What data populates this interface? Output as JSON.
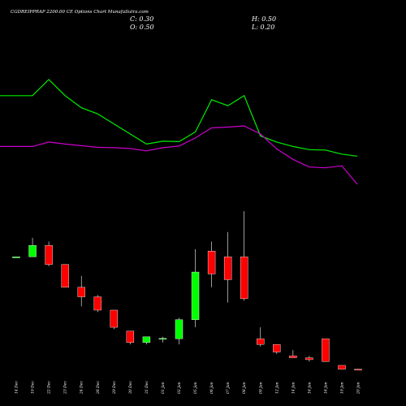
{
  "title": "CGDREIPPRAP 2200.00  CE Options  Chart MunafaSutra.com",
  "ohlc": {
    "close": "C: 0.30",
    "high": "H: 0.50",
    "open": "O: 0.50",
    "low": "L: 0.20"
  },
  "colors": {
    "background": "#000000",
    "up": "#00ff00",
    "down": "#ff0000",
    "ma_fast": "#00ee00",
    "ma_slow": "#cc00cc",
    "text": "#ffffff"
  },
  "chart_data": {
    "type": "candlestick",
    "categories": [
      "14 Dec",
      "19 Dec",
      "22 Dec",
      "23 Dec",
      "24 Dec",
      "26 Dec",
      "29 Dec",
      "30 Dec",
      "31 Dec",
      "01 Jan",
      "02 Jan",
      "05 Jan",
      "06 Jan",
      "07 Jan",
      "08 Jan",
      "09 Jan",
      "12 Jan",
      "14 Jan",
      "16 Jan",
      "16 Jan",
      "19 Jan",
      "20 Jan"
    ],
    "candles": [
      {
        "o": 30.0,
        "h": 30.0,
        "l": 30.0,
        "c": 30.0
      },
      {
        "o": 30.0,
        "h": 35.0,
        "l": 30.0,
        "c": 33.0
      },
      {
        "o": 33.0,
        "h": 34.0,
        "l": 27.5,
        "c": 28.0
      },
      {
        "o": 28.0,
        "h": 28.0,
        "l": 22.0,
        "c": 22.0
      },
      {
        "o": 22.0,
        "h": 25.0,
        "l": 17.0,
        "c": 19.5
      },
      {
        "o": 19.5,
        "h": 20.0,
        "l": 15.5,
        "c": 16.0
      },
      {
        "o": 16.0,
        "h": 16.0,
        "l": 11.0,
        "c": 11.5
      },
      {
        "o": 10.5,
        "h": 10.5,
        "l": 7.0,
        "c": 7.5
      },
      {
        "o": 7.5,
        "h": 9.0,
        "l": 7.0,
        "c": 9.0
      },
      {
        "o": 8.5,
        "h": 9.0,
        "l": 7.5,
        "c": 8.6
      },
      {
        "o": 8.5,
        "h": 14.0,
        "l": 7.0,
        "c": 13.5
      },
      {
        "o": 13.5,
        "h": 32.0,
        "l": 11.5,
        "c": 26.0
      },
      {
        "o": 31.5,
        "h": 34.0,
        "l": 22.0,
        "c": 25.5
      },
      {
        "o": 30.0,
        "h": 36.5,
        "l": 18.0,
        "c": 24.0
      },
      {
        "o": 30.0,
        "h": 42.0,
        "l": 18.5,
        "c": 19.0
      },
      {
        "o": 8.5,
        "h": 11.5,
        "l": 6.5,
        "c": 7.0
      },
      {
        "o": 7.0,
        "h": 7.0,
        "l": 4.5,
        "c": 5.0
      },
      {
        "o": 4.0,
        "h": 5.5,
        "l": 3.5,
        "c": 3.5
      },
      {
        "o": 3.5,
        "h": 4.0,
        "l": 2.5,
        "c": 3.0
      },
      {
        "o": 8.5,
        "h": 8.5,
        "l": 2.5,
        "c": 2.5
      },
      {
        "o": 1.5,
        "h": 1.5,
        "l": 0.5,
        "c": 0.5
      },
      {
        "o": 0.5,
        "h": 0.5,
        "l": 0.2,
        "c": 0.3
      }
    ],
    "ma_fast": [
      48.0,
      48.0,
      52.0,
      48.0,
      45.0,
      43.5,
      41.0,
      38.5,
      36.0,
      36.7,
      36.6,
      39.0,
      47.0,
      45.5,
      48.0,
      38.0,
      36.5,
      35.4,
      34.6,
      34.5,
      33.5,
      33.0
    ],
    "ma_slow": [
      35.4,
      35.4,
      36.5,
      36.0,
      35.6,
      35.2,
      35.1,
      34.9,
      34.3,
      35.1,
      35.5,
      37.5,
      40.0,
      40.2,
      40.5,
      38.5,
      34.8,
      32.2,
      30.3,
      30.1,
      30.6,
      26.0
    ],
    "ylim_candles": [
      0,
      42
    ],
    "ylim_ma": [
      25,
      53
    ]
  }
}
